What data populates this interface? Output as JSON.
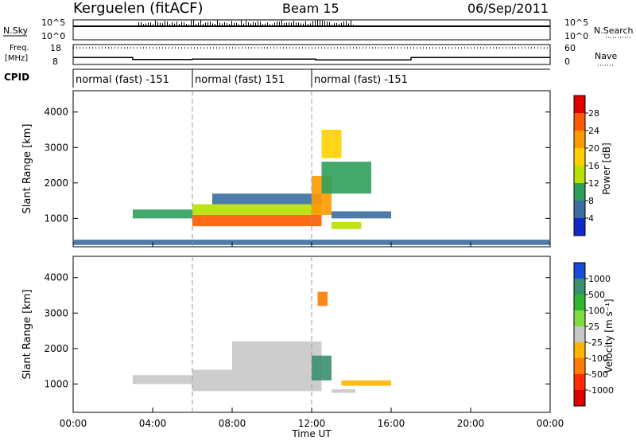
{
  "header": {
    "station": "Kerguelen (fitACF)",
    "beam": "Beam 15",
    "date": "06/Sep/2011"
  },
  "top_panels": {
    "nsky_label": "N.Sky",
    "nsky_ticks": [
      "10^5",
      "10^0"
    ],
    "nsearch_label": "N.Search",
    "nsearch_ticks": [
      "10^5",
      "10^0"
    ],
    "freq_label_line1": "Freq.",
    "freq_label_line2": "[MHz]",
    "freq_ticks": [
      "18",
      "8"
    ],
    "nave_label": "Nave",
    "nave_ticks": [
      "60",
      "0"
    ],
    "cpid_label": "CPID",
    "cpid_segments": [
      {
        "label": "normal (fast) -151",
        "start": 0,
        "end": 6
      },
      {
        "label": "normal (fast) 151",
        "start": 6,
        "end": 12
      },
      {
        "label": "normal (fast) -151",
        "start": 12,
        "end": 24
      }
    ]
  },
  "power_colorbar": {
    "label": "Power [dB]",
    "ticks": [
      "28",
      "24",
      "20",
      "16",
      "12",
      "8",
      "4"
    ],
    "colors": [
      "#e00000",
      "#ff5a00",
      "#ff9900",
      "#ffd000",
      "#b8e000",
      "#2e9e5c",
      "#3b6e9e",
      "#1428c8"
    ]
  },
  "velocity_colorbar": {
    "label": "Velocity [m s⁻¹]",
    "ticks": [
      "1000",
      "500",
      "100",
      "25",
      "-25",
      "-100",
      "-500",
      "-1000"
    ],
    "colors": [
      "#1a4bd6",
      "#3a8f6f",
      "#2fb82f",
      "#7fdc3f",
      "#c8c8c8",
      "#ffb400",
      "#ff7a00",
      "#ff2a00",
      "#e00000"
    ]
  },
  "chart_data": [
    {
      "type": "heatmap",
      "title": "",
      "ylabel": "Slant Range [km]",
      "xlabel": "Time UT",
      "ylim": [
        200,
        4600
      ],
      "yticks": [
        "1000",
        "2000",
        "3000",
        "4000"
      ],
      "xticks": [
        "00:00",
        "04:00",
        "08:00",
        "12:00",
        "16:00",
        "20:00",
        "00:00"
      ],
      "x_range_hours": [
        0,
        24
      ],
      "value_label": "Power [dB]",
      "value_range": [
        0,
        30
      ],
      "cells": [
        {
          "hours": [
            3.0,
            6.0
          ],
          "range_km": [
            1000,
            1250
          ],
          "value": 10
        },
        {
          "hours": [
            6.0,
            12.5
          ],
          "range_km": [
            780,
            1100
          ],
          "value": 26
        },
        {
          "hours": [
            6.0,
            12.5
          ],
          "range_km": [
            1100,
            1400
          ],
          "value": 14
        },
        {
          "hours": [
            7.0,
            12.5
          ],
          "range_km": [
            1400,
            1700
          ],
          "value": 6
        },
        {
          "hours": [
            12.0,
            13.0
          ],
          "range_km": [
            1100,
            2200
          ],
          "value": 22
        },
        {
          "hours": [
            12.5,
            15.0
          ],
          "range_km": [
            1700,
            2600
          ],
          "value": 8
        },
        {
          "hours": [
            12.5,
            13.5
          ],
          "range_km": [
            2700,
            3500
          ],
          "value": 16
        },
        {
          "hours": [
            13.0,
            16.0
          ],
          "range_km": [
            1000,
            1200
          ],
          "value": 6
        },
        {
          "hours": [
            13.0,
            14.5
          ],
          "range_km": [
            700,
            900
          ],
          "value": 12
        },
        {
          "hours": [
            0.0,
            24.0
          ],
          "range_km": [
            250,
            400
          ],
          "value": 4
        }
      ]
    },
    {
      "type": "heatmap",
      "title": "",
      "ylabel": "Slant Range [km]",
      "xlabel": "Time UT",
      "ylim": [
        200,
        4600
      ],
      "yticks": [
        "1000",
        "2000",
        "3000",
        "4000"
      ],
      "xticks": [
        "00:00",
        "04:00",
        "08:00",
        "12:00",
        "16:00",
        "20:00",
        "00:00"
      ],
      "x_range_hours": [
        0,
        24
      ],
      "value_label": "Velocity [m s⁻¹]",
      "value_range": [
        -1000,
        1000
      ],
      "cells": [
        {
          "hours": [
            3.0,
            6.0
          ],
          "range_km": [
            1000,
            1250
          ],
          "value": 0
        },
        {
          "hours": [
            6.0,
            12.5
          ],
          "range_km": [
            800,
            1400
          ],
          "value": 0
        },
        {
          "hours": [
            8.0,
            12.5
          ],
          "range_km": [
            1400,
            2200
          ],
          "value": 0
        },
        {
          "hours": [
            12.0,
            13.0
          ],
          "range_km": [
            1100,
            1800
          ],
          "value": 700
        },
        {
          "hours": [
            12.3,
            12.8
          ],
          "range_km": [
            3200,
            3600
          ],
          "value": -500
        },
        {
          "hours": [
            13.0,
            14.2
          ],
          "range_km": [
            750,
            850
          ],
          "value": 60
        },
        {
          "hours": [
            13.5,
            16.0
          ],
          "range_km": [
            950,
            1100
          ],
          "value": -300
        }
      ]
    }
  ]
}
